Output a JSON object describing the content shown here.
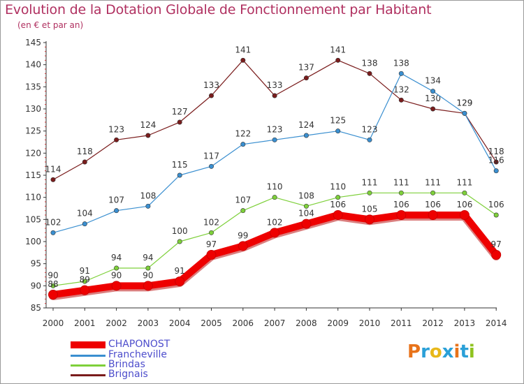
{
  "title": "Evolution de la Dotation Globale de Fonctionnement par Habitant",
  "subtitle": "(en € et par an)",
  "logo": {
    "text": "Proxiti",
    "colors": [
      "#e8731a",
      "#2aa0d8",
      "#e8b81a",
      "#2aa0d8",
      "#e8731a",
      "#2aa0d8",
      "#8fc31f"
    ]
  },
  "chart_data": {
    "type": "line",
    "title": "Evolution de la Dotation Globale de Fonctionnement par Habitant",
    "subtitle": "(en € et par an)",
    "x": [
      "2000",
      "2001",
      "2002",
      "2003",
      "2004",
      "2005",
      "2006",
      "2007",
      "2008",
      "2009",
      "2010",
      "2011",
      "2012",
      "2013",
      "2014"
    ],
    "ylim": [
      85,
      145
    ],
    "yticks": [
      85,
      90,
      95,
      100,
      105,
      110,
      115,
      120,
      125,
      130,
      135,
      140,
      145
    ],
    "grid": false,
    "legend_position": "bottom-left",
    "series": [
      {
        "name": "Brignais",
        "color": "#7a1c1c",
        "values": [
          114,
          118,
          123,
          124,
          127,
          133,
          141,
          133,
          137,
          141,
          138,
          132,
          130,
          129,
          118
        ]
      },
      {
        "name": "Francheville",
        "color": "#3a8fd0",
        "values": [
          102,
          104,
          107,
          108,
          115,
          117,
          122,
          123,
          124,
          125,
          123,
          138,
          134,
          129,
          116
        ]
      },
      {
        "name": "Brindas",
        "color": "#7ed03a",
        "values": [
          90,
          91,
          94,
          94,
          100,
          102,
          107,
          110,
          108,
          110,
          111,
          111,
          111,
          111,
          106
        ]
      },
      {
        "name": "CHAPONOST",
        "color": "#ee0000",
        "values": [
          88,
          89,
          90,
          90,
          91,
          97,
          99,
          102,
          104,
          106,
          105,
          106,
          106,
          106,
          97
        ]
      }
    ]
  },
  "legend": [
    {
      "name": "CHAPONOST",
      "color": "#ee0000"
    },
    {
      "name": "Francheville",
      "color": "#3a8fd0"
    },
    {
      "name": "Brindas",
      "color": "#7ed03a"
    },
    {
      "name": "Brignais",
      "color": "#7a1c1c"
    }
  ]
}
